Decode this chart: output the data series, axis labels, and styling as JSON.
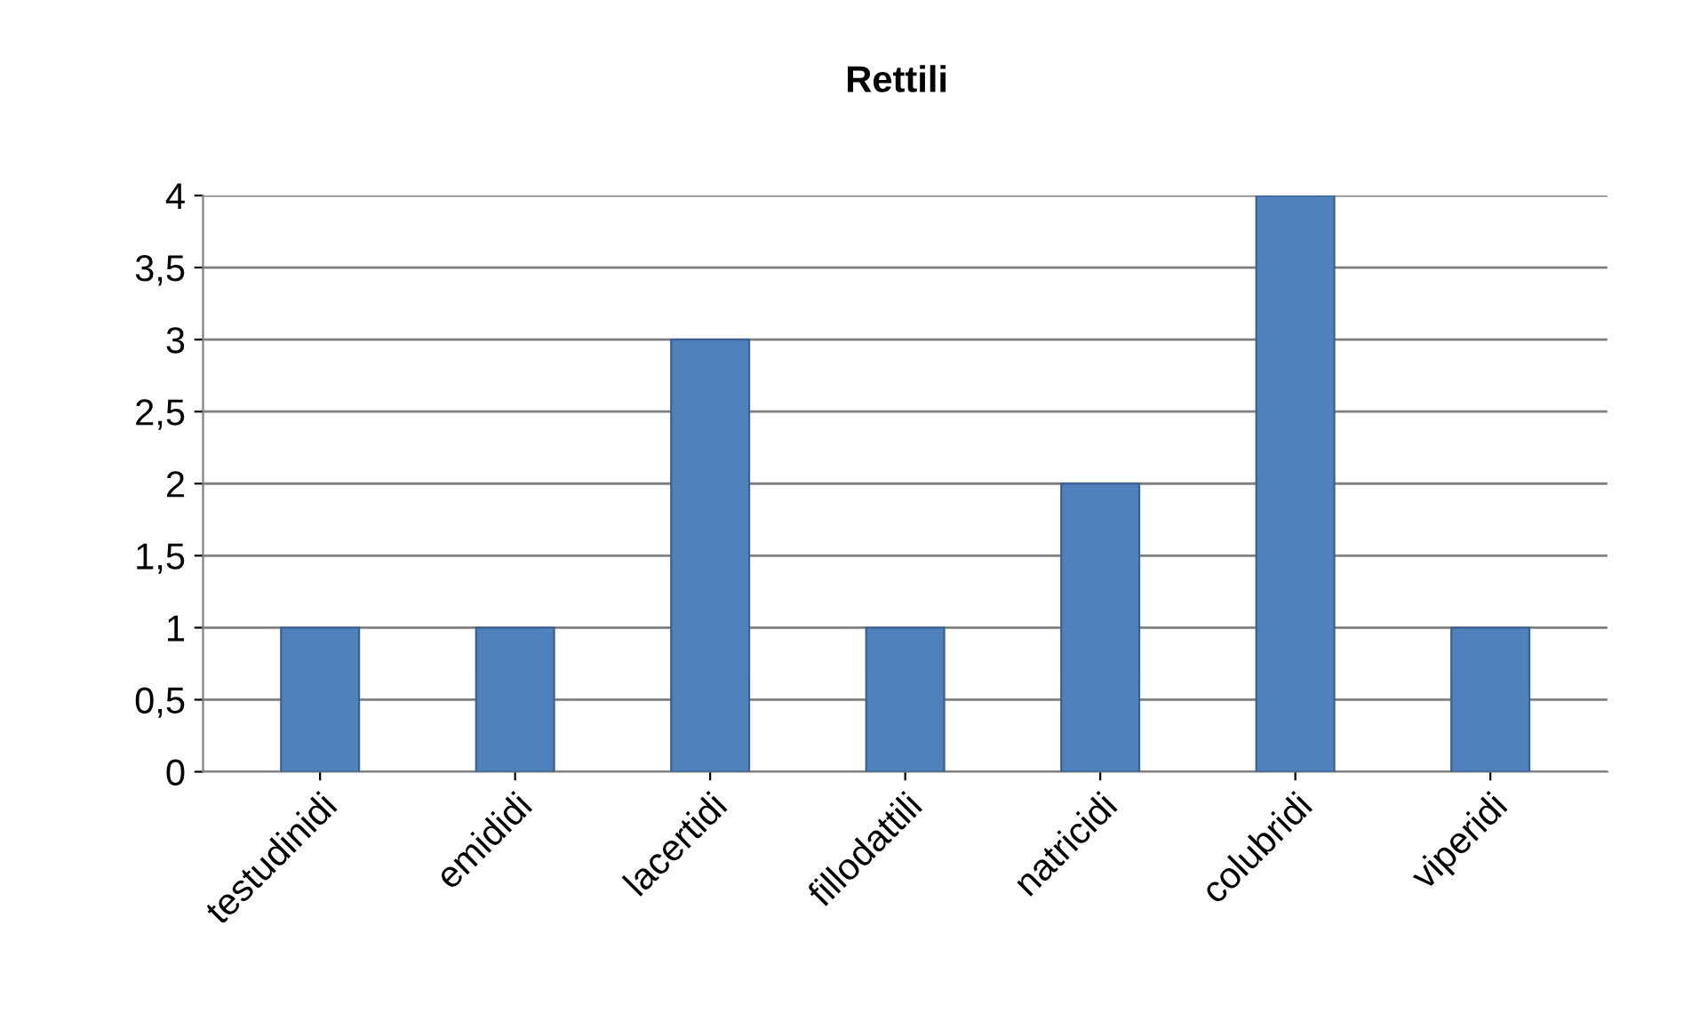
{
  "chart_data": {
    "type": "bar",
    "title": "Rettili",
    "categories": [
      "testudinidi",
      "emididi",
      "lacertidi",
      "fillodattili",
      "natricidi",
      "colubridi",
      "viperidi"
    ],
    "values": [
      1,
      1,
      3,
      1,
      2,
      4,
      1
    ],
    "color": "#4f81bd",
    "ylim": [
      0,
      4
    ],
    "yticks": [
      0,
      {
        "value": 0.5,
        "label": "0,5"
      },
      1,
      {
        "value": 1.5,
        "label": "1,5"
      },
      2,
      {
        "value": 2.5,
        "label": "2,5"
      },
      3,
      {
        "value": 3.5,
        "label": "3,5"
      },
      4
    ],
    "grid": "y",
    "legend": false
  }
}
